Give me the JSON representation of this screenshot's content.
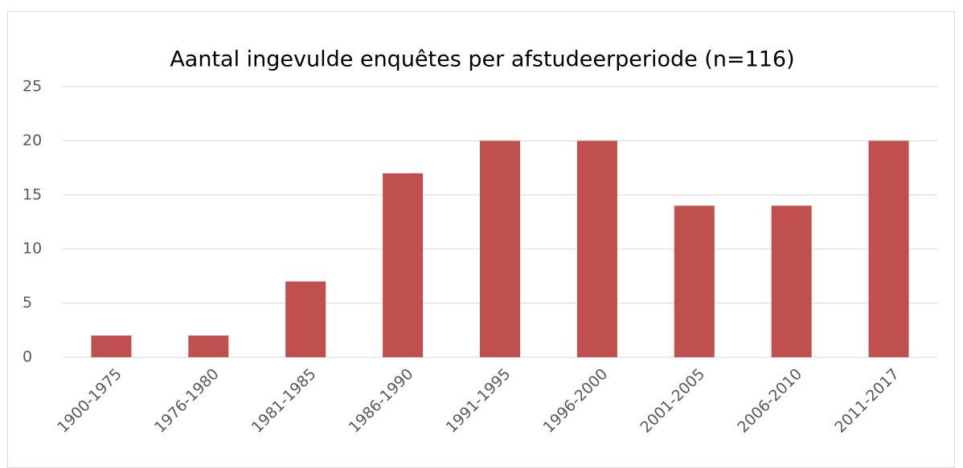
{
  "chart_data": {
    "type": "bar",
    "title": "Aantal ingevulde enquêtes per afstudeerperiode (n=116)",
    "categories": [
      "1900-1975",
      "1976-1980",
      "1981-1985",
      "1986-1990",
      "1991-1995",
      "1996-2000",
      "2001-2005",
      "2006-2010",
      "2011-2017"
    ],
    "values": [
      2,
      2,
      7,
      17,
      20,
      20,
      14,
      14,
      20
    ],
    "color": "#c0504d",
    "ylim": [
      0,
      25
    ],
    "yticks": [
      0,
      5,
      10,
      15,
      20,
      25
    ],
    "grid": true
  }
}
